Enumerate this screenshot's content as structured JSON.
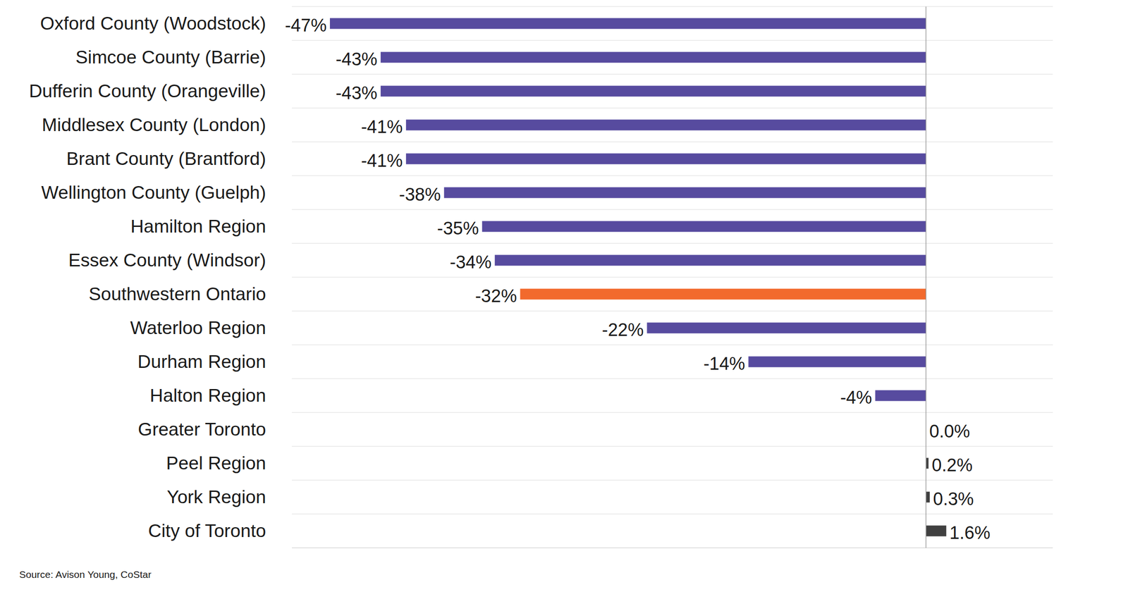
{
  "chart_data": {
    "type": "bar",
    "orientation": "horizontal",
    "categories": [
      "Oxford County (Woodstock)",
      "Simcoe County (Barrie)",
      "Dufferin County (Orangeville)",
      "Middlesex County (London)",
      "Brant County (Brantford)",
      "Wellington County (Guelph)",
      "Hamilton Region",
      "Essex County (Windsor)",
      "Southwestern Ontario",
      "Waterloo Region",
      "Durham Region",
      "Halton Region",
      "Greater Toronto",
      "Peel Region",
      "York Region",
      "City of Toronto"
    ],
    "values": [
      -47,
      -43,
      -43,
      -41,
      -41,
      -38,
      -35,
      -34,
      -32,
      -22,
      -14,
      -4,
      0,
      0.2,
      0.3,
      1.6
    ],
    "value_labels": [
      "-47%",
      "-43%",
      "-43%",
      "-41%",
      "-41%",
      "-38%",
      "-35%",
      "-34%",
      "-32%",
      "-22%",
      "-14%",
      "-4%",
      "0.0%",
      "0.2%",
      "0.3%",
      "1.6%"
    ],
    "colors": [
      "#574b9f",
      "#574b9f",
      "#574b9f",
      "#574b9f",
      "#574b9f",
      "#574b9f",
      "#574b9f",
      "#574b9f",
      "#f26a2d",
      "#574b9f",
      "#574b9f",
      "#574b9f",
      "#404040",
      "#404040",
      "#404040",
      "#404040"
    ],
    "xlim": [
      -50,
      10
    ],
    "xticks": [
      0
    ],
    "tick_labels": false,
    "grid": true,
    "data_labels": true,
    "source": "Source: Avison Young, CoStar"
  }
}
